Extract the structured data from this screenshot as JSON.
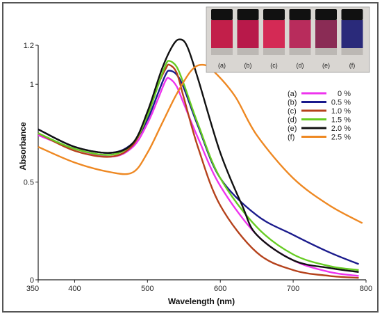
{
  "chart_data": {
    "type": "line",
    "xlabel": "Wavelength (nm)",
    "ylabel": "Absorbance",
    "xlim": [
      350,
      800
    ],
    "ylim": [
      0,
      1.2
    ],
    "x_ticks": [
      "350",
      "400",
      "500",
      "600",
      "700",
      "800"
    ],
    "y_ticks": [
      "0",
      "0.5",
      "1",
      "1.2"
    ],
    "legend_position": "right-middle",
    "series": [
      {
        "name": "0 %",
        "label": "(a)",
        "color": "#ee33ee",
        "x": [
          350,
          400,
          450,
          480,
          500,
          515,
          525,
          530,
          540,
          550,
          570,
          600,
          650,
          700,
          750,
          790
        ],
        "y": [
          0.74,
          0.67,
          0.63,
          0.68,
          0.8,
          0.93,
          1.02,
          1.03,
          0.99,
          0.9,
          0.72,
          0.48,
          0.23,
          0.1,
          0.04,
          0.02
        ]
      },
      {
        "name": "0.5 %",
        "label": "(b)",
        "color": "#1a1a8c",
        "x": [
          350,
          400,
          450,
          480,
          500,
          515,
          525,
          530,
          540,
          550,
          570,
          600,
          650,
          700,
          750,
          790
        ],
        "y": [
          0.77,
          0.68,
          0.65,
          0.7,
          0.82,
          0.96,
          1.05,
          1.07,
          1.05,
          0.98,
          0.78,
          0.52,
          0.33,
          0.23,
          0.14,
          0.08
        ]
      },
      {
        "name": "1.0 %",
        "label": "(c)",
        "color": "#b5421c",
        "x": [
          350,
          400,
          450,
          480,
          500,
          515,
          525,
          530,
          540,
          550,
          570,
          600,
          650,
          700,
          750,
          790
        ],
        "y": [
          0.75,
          0.66,
          0.63,
          0.69,
          0.84,
          1.0,
          1.08,
          1.1,
          1.06,
          0.93,
          0.67,
          0.38,
          0.14,
          0.05,
          0.02,
          0.01
        ]
      },
      {
        "name": "1.5 %",
        "label": "(d)",
        "color": "#66cc22",
        "x": [
          350,
          400,
          450,
          480,
          500,
          515,
          525,
          530,
          540,
          550,
          570,
          600,
          650,
          700,
          750,
          790
        ],
        "y": [
          0.75,
          0.67,
          0.64,
          0.7,
          0.84,
          1.0,
          1.1,
          1.12,
          1.09,
          1.0,
          0.79,
          0.52,
          0.27,
          0.13,
          0.07,
          0.05
        ]
      },
      {
        "name": "2.0 %",
        "label": "(e)",
        "color": "#111111",
        "x": [
          350,
          400,
          450,
          480,
          500,
          520,
          535,
          545,
          555,
          570,
          600,
          630,
          650,
          700,
          750,
          790
        ],
        "y": [
          0.77,
          0.68,
          0.65,
          0.7,
          0.86,
          1.08,
          1.2,
          1.23,
          1.19,
          1.02,
          0.65,
          0.38,
          0.23,
          0.1,
          0.06,
          0.04
        ]
      },
      {
        "name": "2.5 %",
        "label": "(f)",
        "color": "#ee8822",
        "x": [
          350,
          400,
          450,
          480,
          500,
          520,
          540,
          560,
          575,
          590,
          620,
          650,
          700,
          750,
          795
        ],
        "y": [
          0.68,
          0.6,
          0.55,
          0.55,
          0.65,
          0.8,
          0.95,
          1.07,
          1.1,
          1.07,
          0.94,
          0.74,
          0.52,
          0.38,
          0.29
        ]
      }
    ]
  },
  "inset": {
    "vial_labels": [
      "(a)",
      "(b)",
      "(c)",
      "(d)",
      "(e)",
      "(f)"
    ],
    "vial_colors": [
      "#c21f4a",
      "#b8194a",
      "#d42a55",
      "#b82c5c",
      "#8a2c55",
      "#2a2a7a"
    ]
  }
}
